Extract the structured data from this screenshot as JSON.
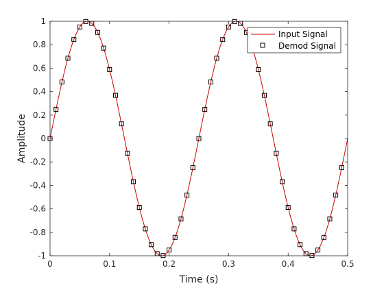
{
  "chart_data": {
    "type": "line",
    "title": "",
    "xlabel": "Time (s)",
    "ylabel": "Amplitude",
    "xlim": [
      0,
      0.5
    ],
    "ylim": [
      -1,
      1
    ],
    "x_ticks": [
      0,
      0.1,
      0.2,
      0.3,
      0.4,
      0.5
    ],
    "y_ticks": [
      -1,
      -0.8,
      -0.6,
      -0.4,
      -0.2,
      0,
      0.2,
      0.4,
      0.6,
      0.8,
      1
    ],
    "x_tick_labels": [
      "0",
      "0.1",
      "0.2",
      "0.3",
      "0.4",
      "0.5"
    ],
    "y_tick_labels": [
      "-1",
      "-0.8",
      "-0.6",
      "-0.4",
      "-0.2",
      "0",
      "0.2",
      "0.4",
      "0.6",
      "0.8",
      "1"
    ],
    "grid": false,
    "legend_position": "top-right",
    "x": [
      0,
      0.01,
      0.02,
      0.03,
      0.04,
      0.05,
      0.06,
      0.07,
      0.08,
      0.09,
      0.1,
      0.11,
      0.12,
      0.13,
      0.14,
      0.15,
      0.16,
      0.17,
      0.18,
      0.19,
      0.2,
      0.21,
      0.22,
      0.23,
      0.24,
      0.25,
      0.26,
      0.27,
      0.28,
      0.29,
      0.3,
      0.31,
      0.32,
      0.33,
      0.34,
      0.35,
      0.36,
      0.37,
      0.38,
      0.39,
      0.4,
      0.41,
      0.42,
      0.43,
      0.44,
      0.45,
      0.46,
      0.47,
      0.48,
      0.49
    ],
    "series": [
      {
        "name": "Input Signal",
        "style": "line",
        "color": "#cc0000",
        "values": [
          0,
          0.249,
          0.482,
          0.685,
          0.844,
          0.951,
          0.998,
          0.982,
          0.905,
          0.771,
          0.588,
          0.368,
          0.125,
          -0.125,
          -0.368,
          -0.588,
          -0.771,
          -0.905,
          -0.982,
          -0.998,
          -0.951,
          -0.844,
          -0.685,
          -0.482,
          -0.249,
          0,
          0.249,
          0.482,
          0.685,
          0.844,
          0.951,
          0.998,
          0.982,
          0.905,
          0.771,
          0.588,
          0.368,
          0.125,
          -0.125,
          -0.368,
          -0.588,
          -0.771,
          -0.905,
          -0.982,
          -0.998,
          -0.951,
          -0.844,
          -0.685,
          -0.482,
          -0.249
        ]
      },
      {
        "name": "Demod Signal",
        "style": "square-markers",
        "color": "#000000",
        "values": [
          0,
          0.249,
          0.482,
          0.685,
          0.844,
          0.951,
          0.998,
          0.982,
          0.905,
          0.771,
          0.588,
          0.368,
          0.125,
          -0.125,
          -0.368,
          -0.588,
          -0.771,
          -0.905,
          -0.982,
          -0.998,
          -0.951,
          -0.844,
          -0.685,
          -0.482,
          -0.249,
          0,
          0.249,
          0.482,
          0.685,
          0.844,
          0.951,
          0.998,
          0.982,
          0.905,
          0.771,
          0.588,
          0.368,
          0.125,
          -0.125,
          -0.368,
          -0.588,
          -0.771,
          -0.905,
          -0.982,
          -0.998,
          -0.951,
          -0.844,
          -0.685,
          -0.482,
          -0.249
        ]
      }
    ]
  }
}
